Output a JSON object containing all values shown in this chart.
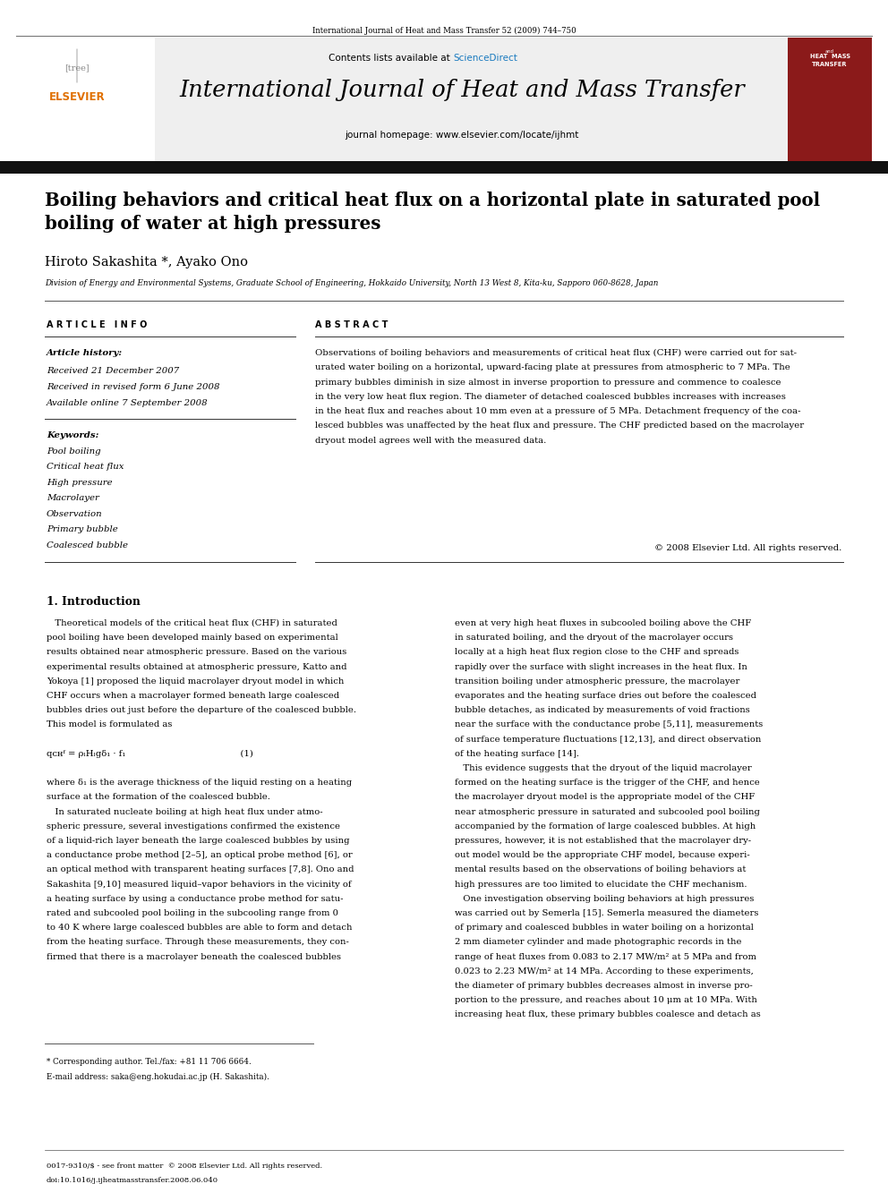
{
  "page_width": 9.92,
  "page_height": 13.23,
  "bg_color": "#ffffff",
  "journal_ref": "International Journal of Heat and Mass Transfer 52 (2009) 744–750",
  "header_bg": "#efefef",
  "contents_text": "Contents lists available at",
  "sciencedirect_text": "ScienceDirect",
  "sciencedirect_color": "#1a7abf",
  "journal_title": "International Journal of Heat and Mass Transfer",
  "homepage_text": "journal homepage: www.elsevier.com/locate/ijhmt",
  "elsevier_color": "#e07000",
  "paper_title": "Boiling behaviors and critical heat flux on a horizontal plate in saturated pool\nboiling of water at high pressures",
  "authors": "Hiroto Sakashita *, Ayako Ono",
  "affiliation": "Division of Energy and Environmental Systems, Graduate School of Engineering, Hokkaido University, North 13 West 8, Kita-ku, Sapporo 060-8628, Japan",
  "article_info_label": "A R T I C L E   I N F O",
  "abstract_label": "A B S T R A C T",
  "article_history_label": "Article history:",
  "received1": "Received 21 December 2007",
  "received2": "Received in revised form 6 June 2008",
  "available": "Available online 7 September 2008",
  "keywords_label": "Keywords:",
  "keywords": [
    "Pool boiling",
    "Critical heat flux",
    "High pressure",
    "Macrolayer",
    "Observation",
    "Primary bubble",
    "Coalesced bubble"
  ],
  "abstract_text": "Observations of boiling behaviors and measurements of critical heat flux (CHF) were carried out for sat-\nurated water boiling on a horizontal, upward-facing plate at pressures from atmospheric to 7 MPa. The\nprimary bubbles diminish in size almost in inverse proportion to pressure and commence to coalesce\nin the very low heat flux region. The diameter of detached coalesced bubbles increases with increases\nin the heat flux and reaches about 10 mm even at a pressure of 5 MPa. Detachment frequency of the coa-\nlesced bubbles was unaffected by the heat flux and pressure. The CHF predicted based on the macrolayer\ndryout model agrees well with the measured data.",
  "copyright_text": "© 2008 Elsevier Ltd. All rights reserved.",
  "intro_heading": "1. Introduction",
  "intro_col1_lines": [
    "   Theoretical models of the critical heat flux (CHF) in saturated",
    "pool boiling have been developed mainly based on experimental",
    "results obtained near atmospheric pressure. Based on the various",
    "experimental results obtained at atmospheric pressure, Katto and",
    "Yokoya [1] proposed the liquid macrolayer dryout model in which",
    "CHF occurs when a macrolayer formed beneath large coalesced",
    "bubbles dries out just before the departure of the coalesced bubble.",
    "This model is formulated as",
    "",
    "qᴄʜᶠ = ρₗHₗgδ₁ · f₁                                         (1)",
    "",
    "where δ₁ is the average thickness of the liquid resting on a heating",
    "surface at the formation of the coalesced bubble.",
    "   In saturated nucleate boiling at high heat flux under atmo-",
    "spheric pressure, several investigations confirmed the existence",
    "of a liquid-rich layer beneath the large coalesced bubbles by using",
    "a conductance probe method [2–5], an optical probe method [6], or",
    "an optical method with transparent heating surfaces [7,8]. Ono and",
    "Sakashita [9,10] measured liquid–vapor behaviors in the vicinity of",
    "a heating surface by using a conductance probe method for satu-",
    "rated and subcooled pool boiling in the subcooling range from 0",
    "to 40 K where large coalesced bubbles are able to form and detach",
    "from the heating surface. Through these measurements, they con-",
    "firmed that there is a macrolayer beneath the coalesced bubbles"
  ],
  "intro_col2_lines": [
    "even at very high heat fluxes in subcooled boiling above the CHF",
    "in saturated boiling, and the dryout of the macrolayer occurs",
    "locally at a high heat flux region close to the CHF and spreads",
    "rapidly over the surface with slight increases in the heat flux. In",
    "transition boiling under atmospheric pressure, the macrolayer",
    "evaporates and the heating surface dries out before the coalesced",
    "bubble detaches, as indicated by measurements of void fractions",
    "near the surface with the conductance probe [5,11], measurements",
    "of surface temperature fluctuations [12,13], and direct observation",
    "of the heating surface [14].",
    "   This evidence suggests that the dryout of the liquid macrolayer",
    "formed on the heating surface is the trigger of the CHF, and hence",
    "the macrolayer dryout model is the appropriate model of the CHF",
    "near atmospheric pressure in saturated and subcooled pool boiling",
    "accompanied by the formation of large coalesced bubbles. At high",
    "pressures, however, it is not established that the macrolayer dry-",
    "out model would be the appropriate CHF model, because experi-",
    "mental results based on the observations of boiling behaviors at",
    "high pressures are too limited to elucidate the CHF mechanism.",
    "   One investigation observing boiling behaviors at high pressures",
    "was carried out by Semerla [15]. Semerla measured the diameters",
    "of primary and coalesced bubbles in water boiling on a horizontal",
    "2 mm diameter cylinder and made photographic records in the",
    "range of heat fluxes from 0.083 to 2.17 MW/m² at 5 MPa and from",
    "0.023 to 2.23 MW/m² at 14 MPa. According to these experiments,",
    "the diameter of primary bubbles decreases almost in inverse pro-",
    "portion to the pressure, and reaches about 10 μm at 10 MPa. With",
    "increasing heat flux, these primary bubbles coalesce and detach as"
  ],
  "footnote1": "* Corresponding author. Tel./fax: +81 11 706 6664.",
  "footnote2": "E-mail address: saka@eng.hokudai.ac.jp (H. Sakashita).",
  "footer1": "0017-9310/$ - see front matter  © 2008 Elsevier Ltd. All rights reserved.",
  "footer2": "doi:10.1016/j.ijheatmasstransfer.2008.06.040"
}
